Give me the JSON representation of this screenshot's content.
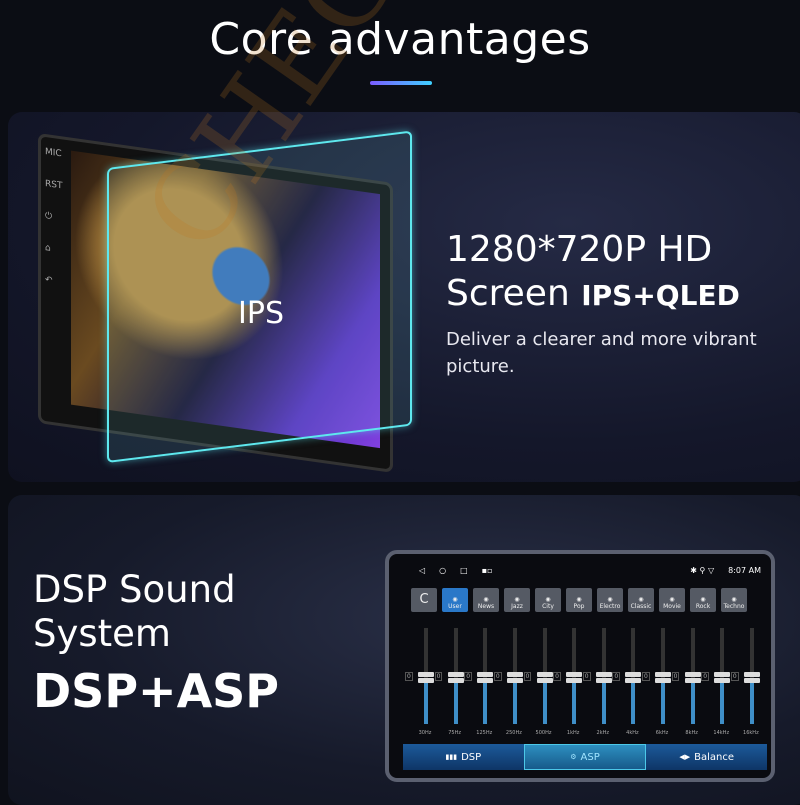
{
  "title": "Core advantages",
  "screen_section": {
    "headline_line1": "1280*720P HD",
    "headline_line2": "Screen",
    "headline_badge": "IPS+QLED",
    "description": "Deliver a clearer and more vibrant picture.",
    "glass_label": "IPS",
    "device_labels": [
      "MIC",
      "RST"
    ]
  },
  "dsp_section": {
    "heading_line1": "DSP Sound",
    "heading_line2": "System",
    "subheading": "DSP+ASP",
    "screen": {
      "time": "8:07 AM",
      "presets": [
        "User",
        "News",
        "Jazz",
        "City",
        "Pop",
        "Electro",
        "Classic",
        "Movie",
        "Rock",
        "Techno"
      ],
      "active_preset": "User",
      "reset_label": "C",
      "bands": [
        {
          "freq": "30Hz",
          "value": "0"
        },
        {
          "freq": "75Hz",
          "value": "0"
        },
        {
          "freq": "125Hz",
          "value": "0"
        },
        {
          "freq": "250Hz",
          "value": "0"
        },
        {
          "freq": "500Hz",
          "value": "0"
        },
        {
          "freq": "1kHz",
          "value": "0"
        },
        {
          "freq": "2kHz",
          "value": "0"
        },
        {
          "freq": "4kHz",
          "value": "0"
        },
        {
          "freq": "6kHz",
          "value": "0"
        },
        {
          "freq": "8kHz",
          "value": "0"
        },
        {
          "freq": "14kHz",
          "value": "0"
        },
        {
          "freq": "16kHz",
          "value": "0"
        }
      ],
      "tabs": [
        "DSP",
        "ASP",
        "Balance"
      ],
      "active_tab": "ASP"
    }
  },
  "watermark": "CHEGIT®",
  "colors": {
    "accent_cyan": "#5ee8ee",
    "accent_blue": "#2a78c8",
    "underline_start": "#7a5cff",
    "underline_end": "#3fd0ff"
  }
}
